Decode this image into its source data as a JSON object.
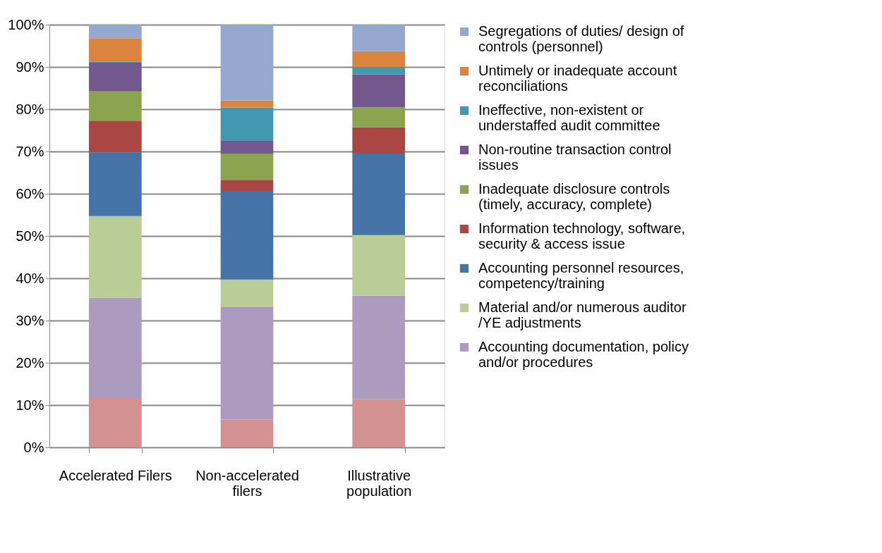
{
  "chart_data": {
    "type": "bar",
    "stacked": true,
    "legend": "right",
    "grid": "y",
    "categories": [
      "Accelerated Filers",
      "Non-accelerated filers",
      "Illustrative population"
    ],
    "ylim": [
      0,
      100
    ],
    "yticks": [
      {
        "value": 0,
        "label": "0%"
      },
      {
        "value": 10,
        "label": "10%"
      },
      {
        "value": 20,
        "label": "20%"
      },
      {
        "value": 30,
        "label": "30%"
      },
      {
        "value": 40,
        "label": "40%"
      },
      {
        "value": 50,
        "label": "50%"
      },
      {
        "value": 60,
        "label": "60%"
      },
      {
        "value": 70,
        "label": "70%"
      },
      {
        "value": 80,
        "label": "80%"
      },
      {
        "value": 90,
        "label": "90%"
      },
      {
        "value": 100,
        "label": "100%"
      }
    ],
    "series": [
      {
        "color": "#d39291",
        "values": [
          11.5,
          6.6,
          11.4
        ]
      },
      {
        "name": "Accounting documentation, policy and/or procedures",
        "color": "#aa9bbf",
        "values": [
          23.9,
          26.7,
          24.5
        ]
      },
      {
        "name": "Material and/or numerous auditor /YE adjustments",
        "color": "#bacd96",
        "values": [
          19.3,
          6.4,
          14.3
        ]
      },
      {
        "name": "Accounting personnel resources, competency/training",
        "color": "#4673a8",
        "values": [
          15.1,
          20.8,
          19.3
        ]
      },
      {
        "name": "Information technology, software, security & access issue",
        "color": "#aa4745",
        "values": [
          7.5,
          2.8,
          6.2
        ]
      },
      {
        "name": "Inadequate disclosure controls (timely, accuracy, complete)",
        "color": "#8aa54e",
        "values": [
          6.9,
          6.2,
          4.7
        ]
      },
      {
        "name": "Non-routine transaction control issues",
        "color": "#72588d",
        "values": [
          6.8,
          3.0,
          7.8
        ]
      },
      {
        "name": "Ineffective, non-existent or understaffed audit committee",
        "color": "#4298b0",
        "values": [
          0.3,
          7.9,
          1.8
        ]
      },
      {
        "name": "Untimely or inadequate account reconciliations",
        "color": "#db843d",
        "values": [
          5.5,
          1.7,
          3.7
        ]
      },
      {
        "name": "Segregations of duties/ design of controls (personnel)",
        "color": "#95a9d0",
        "values": [
          3.2,
          17.9,
          6.3
        ]
      }
    ]
  }
}
